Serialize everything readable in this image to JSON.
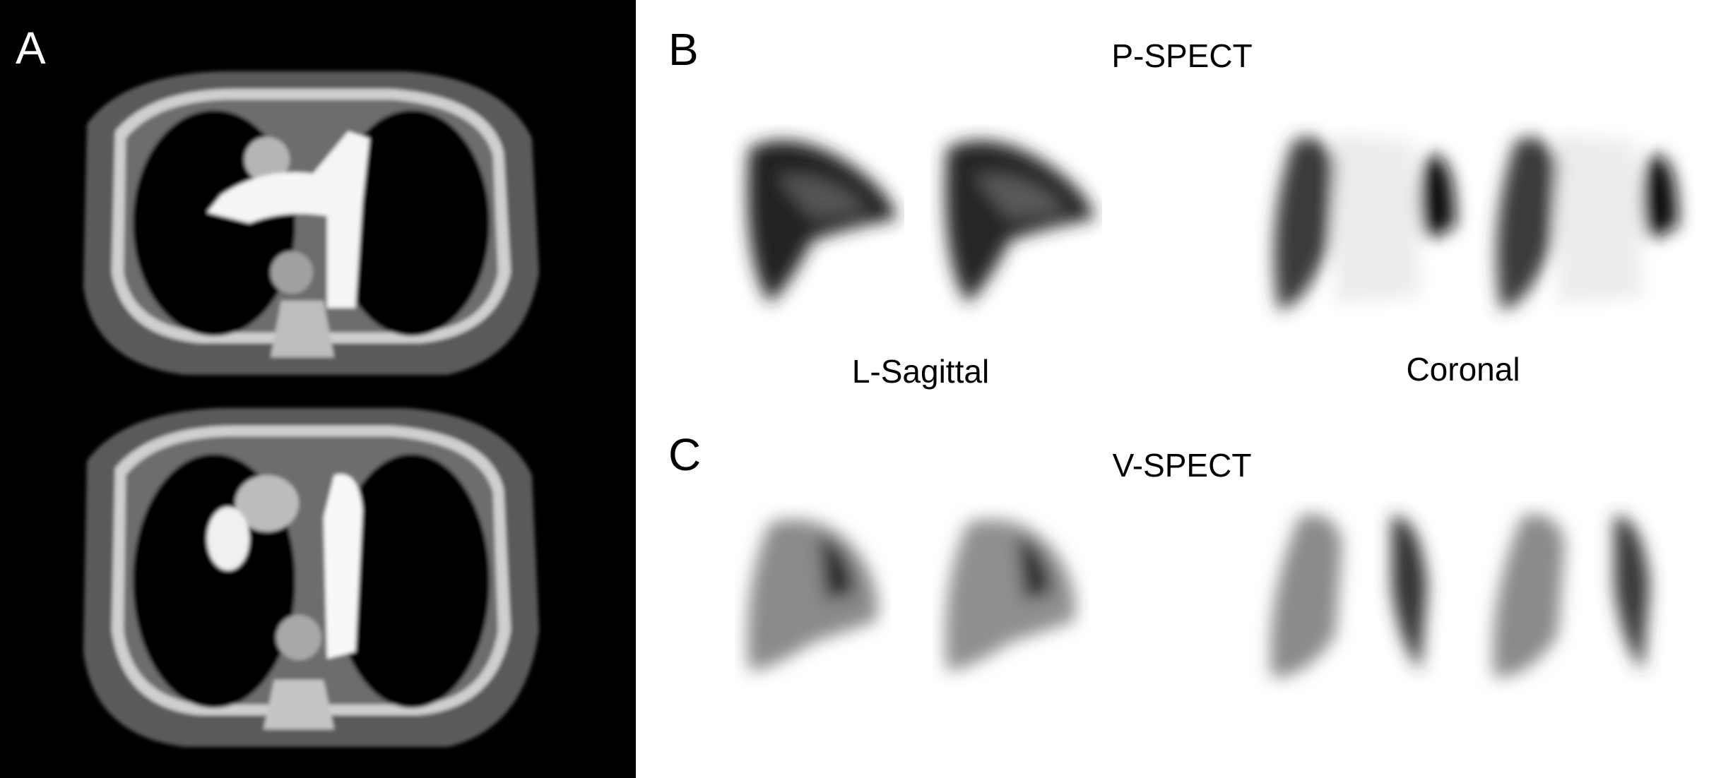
{
  "panels": {
    "a": {
      "label": "A"
    },
    "b": {
      "label": "B",
      "title": "P-SPECT",
      "views": [
        "L-Sagittal",
        "Coronal"
      ]
    },
    "c": {
      "label": "C",
      "title": "V-SPECT"
    }
  }
}
